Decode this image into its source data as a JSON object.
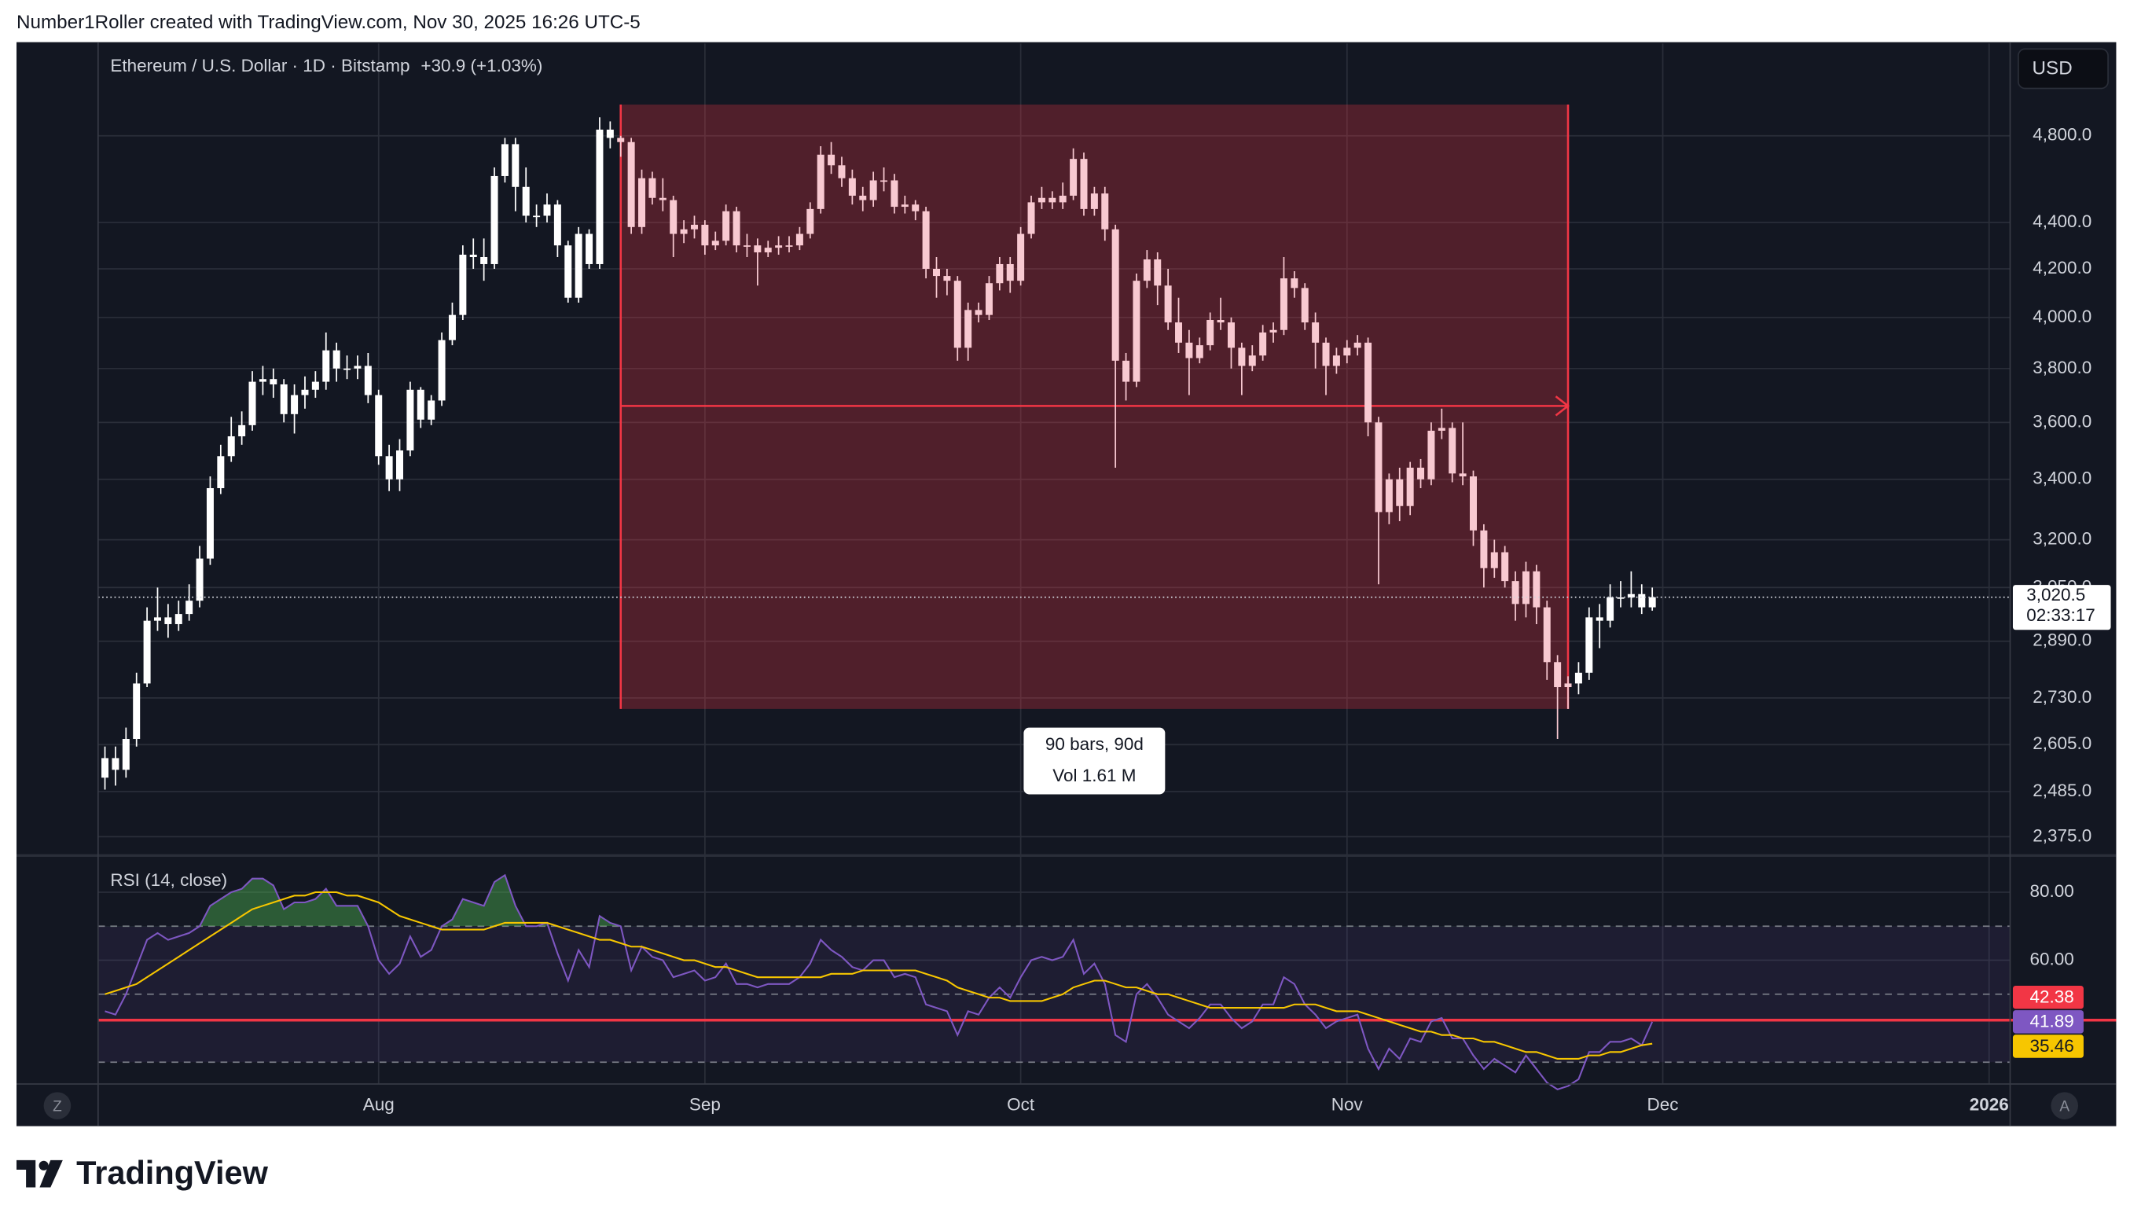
{
  "header": {
    "attribution": "Number1Roller created with TradingView.com, Nov 30, 2025 16:26 UTC-5",
    "symbol": "Ethereum / U.S. Dollar · 1D · Bitstamp",
    "change": "+30.9 (+1.03%)",
    "currency": "USD",
    "logo": "TradingView",
    "scale_buttons": [
      "Z",
      "A"
    ]
  },
  "chart_data": [
    {
      "type": "candlestick",
      "log_scale": true,
      "grid": true,
      "xlim": [
        -0.65,
        181
      ],
      "xticks": [
        {
          "value": 26,
          "label": "Aug"
        },
        {
          "value": 57,
          "label": "Sep"
        },
        {
          "value": 87,
          "label": "Oct"
        },
        {
          "value": 118,
          "label": "Nov"
        },
        {
          "value": 148,
          "label": "Dec"
        },
        {
          "value": 179,
          "label": "2026"
        }
      ],
      "ylim": [
        2337,
        5266
      ],
      "yticks": [
        {
          "value": 4800,
          "label": "4,800.0"
        },
        {
          "value": 4400,
          "label": "4,400.0"
        },
        {
          "value": 4200,
          "label": "4,200.0"
        },
        {
          "value": 4000,
          "label": "4,000.0"
        },
        {
          "value": 3800,
          "label": "3,800.0"
        },
        {
          "value": 3600,
          "label": "3,600.0"
        },
        {
          "value": 3400,
          "label": "3,400.0"
        },
        {
          "value": 3200,
          "label": "3,200.0"
        },
        {
          "value": 3050,
          "label": "3,050.0"
        },
        {
          "value": 2890,
          "label": "2,890.0"
        },
        {
          "value": 2730,
          "label": "2,730.0"
        },
        {
          "value": 2605,
          "label": "2,605.0"
        },
        {
          "value": 2485,
          "label": "2,485.0"
        },
        {
          "value": 2375,
          "label": "2,375.0"
        }
      ],
      "series": [
        {
          "color": "#ffffff",
          "open": [
            2520,
            2570,
            2540,
            2620,
            2770,
            2950,
            2960,
            2940,
            2970,
            3010,
            3140,
            3370,
            3480,
            3550,
            3590,
            3750,
            3760,
            3740,
            3630,
            3700,
            3720,
            3750,
            3870,
            3800,
            3800,
            3810,
            3700,
            3480,
            3400,
            3500,
            3720,
            3610,
            3680,
            3910,
            4010,
            4260,
            4250,
            4220,
            4610,
            4760,
            4560,
            4430,
            4430,
            4480,
            4300,
            4080,
            4350,
            4220,
            4830,
            4790,
            4770,
            4380,
            4600,
            4510,
            4500,
            4350,
            4370,
            4390,
            4300,
            4320,
            4450,
            4300,
            4300,
            4270,
            4290,
            4300,
            4300,
            4350,
            4460,
            4710,
            4660,
            4600,
            4520,
            4500,
            4590,
            4590,
            4470,
            4480,
            4450,
            4200,
            4170,
            4150,
            3880,
            4030,
            4010,
            4140,
            4220,
            4150,
            4350,
            4490,
            4510,
            4490,
            4520,
            4690,
            4460,
            4530,
            4370,
            3830,
            3750,
            4150,
            4240,
            4130,
            3980,
            3900,
            3840,
            3890,
            3990,
            3980,
            3880,
            3810,
            3850,
            3940,
            3950,
            4160,
            4120,
            3980,
            3900,
            3810,
            3850,
            3880,
            3900,
            3600,
            3290,
            3400,
            3310,
            3440,
            3400,
            3570,
            3580,
            3420,
            3410,
            3230,
            3110,
            3160,
            3070,
            3000,
            3100,
            2990,
            2830,
            2760,
            2770,
            2800,
            2960,
            2950,
            3020,
            3020,
            3030,
            2990
          ],
          "high": [
            2600,
            2600,
            2650,
            2800,
            2990,
            3050,
            3000,
            3010,
            3060,
            3180,
            3410,
            3520,
            3620,
            3640,
            3790,
            3810,
            3800,
            3760,
            3740,
            3770,
            3790,
            3940,
            3900,
            3850,
            3850,
            3860,
            3720,
            3520,
            3540,
            3750,
            3730,
            3700,
            3940,
            4060,
            4300,
            4330,
            4330,
            4650,
            4790,
            4790,
            4650,
            4480,
            4530,
            4500,
            4320,
            4380,
            4370,
            4890,
            4870,
            4800,
            4790,
            4640,
            4630,
            4600,
            4520,
            4410,
            4430,
            4410,
            4360,
            4480,
            4470,
            4350,
            4330,
            4320,
            4340,
            4340,
            4380,
            4490,
            4750,
            4770,
            4700,
            4640,
            4560,
            4630,
            4650,
            4620,
            4520,
            4500,
            4470,
            4250,
            4200,
            4170,
            4060,
            4060,
            4170,
            4250,
            4250,
            4380,
            4520,
            4560,
            4540,
            4580,
            4740,
            4720,
            4560,
            4560,
            4390,
            3860,
            4180,
            4280,
            4270,
            4200,
            4080,
            3950,
            3920,
            4020,
            4080,
            4000,
            3900,
            3890,
            3970,
            3980,
            4250,
            4190,
            4140,
            4020,
            3920,
            3880,
            3910,
            3930,
            3920,
            3620,
            3420,
            3440,
            3460,
            3470,
            3600,
            3650,
            3600,
            3600,
            3430,
            3250,
            3200,
            3180,
            3100,
            3130,
            3120,
            3010,
            2850,
            2790,
            2830,
            2990,
            3000,
            3060,
            3070,
            3100,
            3060,
            3050
          ],
          "low": [
            2490,
            2500,
            2520,
            2600,
            2760,
            2920,
            2900,
            2920,
            2950,
            2990,
            3120,
            3350,
            3460,
            3520,
            3570,
            3700,
            3690,
            3600,
            3560,
            3650,
            3690,
            3720,
            3750,
            3760,
            3760,
            3670,
            3450,
            3360,
            3360,
            3480,
            3580,
            3590,
            3660,
            3890,
            3990,
            4200,
            4150,
            4200,
            4580,
            4450,
            4400,
            4380,
            4400,
            4250,
            4060,
            4060,
            4200,
            4200,
            4740,
            4700,
            4350,
            4350,
            4480,
            4450,
            4250,
            4310,
            4330,
            4260,
            4280,
            4300,
            4270,
            4250,
            4130,
            4250,
            4260,
            4270,
            4280,
            4330,
            4440,
            4620,
            4560,
            4480,
            4450,
            4470,
            4540,
            4440,
            4440,
            4410,
            4160,
            4080,
            4090,
            3830,
            3830,
            3980,
            3990,
            4110,
            4100,
            4130,
            4330,
            4460,
            4460,
            4460,
            4500,
            4430,
            4430,
            4320,
            3440,
            3680,
            3730,
            4120,
            4050,
            3950,
            3860,
            3700,
            3820,
            3870,
            3950,
            3800,
            3700,
            3790,
            3830,
            3900,
            3930,
            4080,
            3950,
            3800,
            3700,
            3780,
            3820,
            3850,
            3550,
            3060,
            3250,
            3260,
            3280,
            3370,
            3380,
            3540,
            3390,
            3380,
            3180,
            3050,
            3080,
            3050,
            2950,
            2960,
            2940,
            2780,
            2620,
            2700,
            2740,
            2780,
            2870,
            2930,
            2990,
            2990,
            2970,
            2980
          ],
          "close": [
            2570,
            2540,
            2620,
            2770,
            2950,
            2960,
            2940,
            2970,
            3010,
            3140,
            3370,
            3480,
            3550,
            3590,
            3750,
            3760,
            3740,
            3630,
            3700,
            3720,
            3750,
            3870,
            3800,
            3800,
            3810,
            3700,
            3480,
            3400,
            3500,
            3720,
            3610,
            3680,
            3910,
            4010,
            4260,
            4250,
            4220,
            4610,
            4760,
            4560,
            4430,
            4430,
            4480,
            4300,
            4080,
            4350,
            4220,
            4830,
            4790,
            4770,
            4380,
            4600,
            4510,
            4500,
            4350,
            4370,
            4390,
            4300,
            4320,
            4450,
            4300,
            4300,
            4270,
            4290,
            4300,
            4300,
            4350,
            4460,
            4710,
            4660,
            4600,
            4520,
            4500,
            4590,
            4590,
            4470,
            4480,
            4450,
            4200,
            4170,
            4150,
            3880,
            4030,
            4010,
            4140,
            4220,
            4150,
            4350,
            4490,
            4510,
            4490,
            4520,
            4690,
            4460,
            4530,
            4370,
            3830,
            3750,
            4150,
            4240,
            4130,
            3980,
            3900,
            3840,
            3890,
            3990,
            3980,
            3880,
            3810,
            3850,
            3940,
            3950,
            4160,
            4120,
            3980,
            3900,
            3810,
            3850,
            3880,
            3900,
            3600,
            3290,
            3400,
            3310,
            3440,
            3400,
            3570,
            3580,
            3420,
            3410,
            3230,
            3110,
            3160,
            3070,
            3000,
            3100,
            2990,
            2830,
            2760,
            2770,
            2800,
            2960,
            2950,
            3020,
            3020,
            3030,
            2990,
            3020.5
          ]
        }
      ],
      "last_price": {
        "value": 3020.5,
        "label": "3,020.5",
        "countdown": "02:33:17"
      },
      "measure": {
        "start": 49,
        "end": 139,
        "top": 4953,
        "bottom": 2700,
        "target": 3660,
        "color": "#f23645",
        "candle_color": "#f8c9d1",
        "bars_label": "90 bars, 90d",
        "volume_label": "Vol 1.61 M"
      }
    },
    {
      "type": "rsi",
      "title": "RSI (14, close)",
      "ylim": [
        23.6,
        90
      ],
      "yticks": [
        {
          "value": 80,
          "label": "80.00"
        },
        {
          "value": 60,
          "label": "60.00"
        }
      ],
      "levels": [
        70,
        50,
        30
      ],
      "hline": {
        "value": 42.38,
        "label": "42.38",
        "color": "#f23645"
      },
      "series": [
        {
          "color": "#7e57c2",
          "values": [
            45,
            44,
            50,
            58,
            66,
            68,
            66,
            67,
            68,
            70,
            76,
            78,
            80,
            81,
            84,
            84,
            82,
            75,
            77,
            77,
            78,
            81,
            76,
            76,
            76,
            70,
            60,
            56,
            59,
            67,
            61,
            63,
            70,
            72,
            78,
            77,
            76,
            83,
            85,
            76,
            70,
            70,
            71,
            62,
            54,
            63,
            58,
            73,
            71,
            70,
            57,
            64,
            61,
            60,
            55,
            56,
            57,
            54,
            55,
            59,
            53,
            53,
            52,
            53,
            53,
            53,
            55,
            59,
            66,
            63,
            61,
            58,
            57,
            60,
            60,
            55,
            56,
            55,
            47,
            46,
            45,
            38,
            45,
            44,
            49,
            52,
            49,
            55,
            60,
            61,
            60,
            61,
            66,
            56,
            59,
            53,
            38,
            36,
            50,
            53,
            49,
            44,
            42,
            40,
            43,
            47,
            47,
            43,
            40,
            42,
            47,
            47,
            55,
            53,
            47,
            44,
            40,
            42,
            43,
            44,
            34,
            28,
            34,
            31,
            37,
            36,
            42,
            43,
            37,
            37,
            32,
            28,
            31,
            29,
            27,
            32,
            28,
            24,
            22,
            23,
            25,
            33,
            33,
            36,
            36,
            37,
            35,
            41.89
          ]
        },
        {
          "color": "#f7c600",
          "values": [
            50,
            51,
            52,
            53,
            55,
            57,
            59,
            61,
            63,
            65,
            67,
            69,
            71,
            73,
            75,
            76,
            77,
            78,
            79,
            79,
            80,
            80,
            80,
            79,
            79,
            78,
            77,
            75,
            73,
            72,
            71,
            70,
            69,
            69,
            69,
            69,
            69,
            70,
            71,
            71,
            71,
            71,
            71,
            70,
            69,
            68,
            67,
            66,
            66,
            65,
            64,
            64,
            63,
            62,
            61,
            60,
            60,
            59,
            58,
            58,
            57,
            56,
            55,
            55,
            55,
            55,
            55,
            55,
            55,
            56,
            56,
            56,
            57,
            57,
            57,
            57,
            57,
            57,
            56,
            55,
            54,
            52,
            51,
            50,
            49,
            49,
            48,
            48,
            48,
            48,
            49,
            50,
            52,
            53,
            54,
            54,
            53,
            52,
            52,
            51,
            50,
            50,
            49,
            48,
            47,
            46,
            46,
            46,
            46,
            46,
            46,
            46,
            46,
            47,
            47,
            47,
            46,
            45,
            45,
            45,
            44,
            43,
            42,
            41,
            40,
            39,
            39,
            38,
            38,
            37,
            37,
            36,
            36,
            35,
            34,
            33,
            33,
            32,
            31,
            31,
            31,
            32,
            32,
            33,
            33,
            34,
            35,
            35.46
          ]
        }
      ]
    }
  ]
}
